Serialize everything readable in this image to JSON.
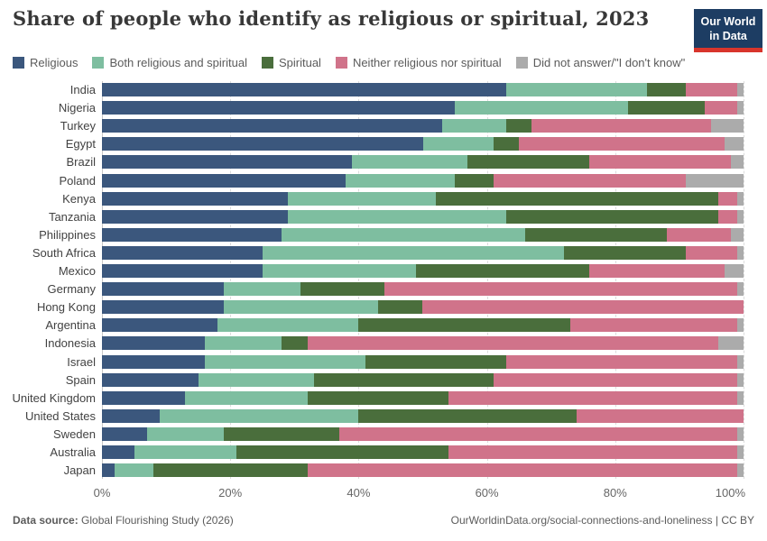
{
  "header": {
    "title": "Share of people who identify as religious or spiritual, 2023",
    "logo": {
      "line1": "Our World",
      "line2": "in Data",
      "bg_color": "#1D3D63",
      "accent_color": "#D8352C"
    }
  },
  "chart_data": {
    "type": "bar",
    "stacked": true,
    "orientation": "horizontal",
    "unit": "%",
    "xlim": [
      0,
      100
    ],
    "grid": true,
    "legend_position": "top",
    "x_ticks": [
      {
        "value": 0,
        "label": "0%"
      },
      {
        "value": 20,
        "label": "20%"
      },
      {
        "value": 40,
        "label": "40%"
      },
      {
        "value": 60,
        "label": "60%"
      },
      {
        "value": 80,
        "label": "80%"
      },
      {
        "value": 100,
        "label": "100%"
      }
    ],
    "categories": [
      "India",
      "Nigeria",
      "Turkey",
      "Egypt",
      "Brazil",
      "Poland",
      "Kenya",
      "Tanzania",
      "Philippines",
      "South Africa",
      "Mexico",
      "Germany",
      "Hong Kong",
      "Argentina",
      "Indonesia",
      "Israel",
      "Spain",
      "United Kingdom",
      "United States",
      "Sweden",
      "Australia",
      "Japan"
    ],
    "series": [
      {
        "name": "Religious",
        "color": "#3B577D",
        "values": [
          63,
          55,
          53,
          50,
          39,
          38,
          29,
          29,
          28,
          25,
          25,
          19,
          19,
          18,
          16,
          16,
          15,
          13,
          9,
          7,
          5,
          2
        ]
      },
      {
        "name": "Both religious and spiritual",
        "color": "#7EBEA0",
        "values": [
          22,
          27,
          10,
          11,
          18,
          17,
          23,
          34,
          38,
          47,
          24,
          12,
          24,
          22,
          12,
          25,
          18,
          19,
          31,
          12,
          16,
          6
        ]
      },
      {
        "name": "Spiritual",
        "color": "#4A6E3C",
        "values": [
          6,
          12,
          4,
          4,
          19,
          6,
          44,
          33,
          22,
          19,
          27,
          13,
          7,
          33,
          4,
          22,
          28,
          22,
          34,
          18,
          33,
          24
        ]
      },
      {
        "name": "Neither religious nor spiritual",
        "color": "#D0738A",
        "values": [
          8,
          5,
          28,
          32,
          22,
          30,
          3,
          3,
          10,
          8,
          21,
          55,
          50,
          26,
          64,
          36,
          38,
          45,
          26,
          62,
          45,
          67
        ]
      },
      {
        "name": "Did not answer/\"I don't know\"",
        "color": "#ABABAB",
        "values": [
          1,
          1,
          5,
          3,
          2,
          9,
          1,
          1,
          2,
          1,
          3,
          1,
          0,
          1,
          4,
          1,
          1,
          1,
          0,
          1,
          1,
          1
        ]
      }
    ]
  },
  "footer": {
    "source_label": "Data source:",
    "source_value": "Global Flourishing Study (2026)",
    "credit": "OurWorldinData.org/social-connections-and-loneliness | CC BY"
  }
}
